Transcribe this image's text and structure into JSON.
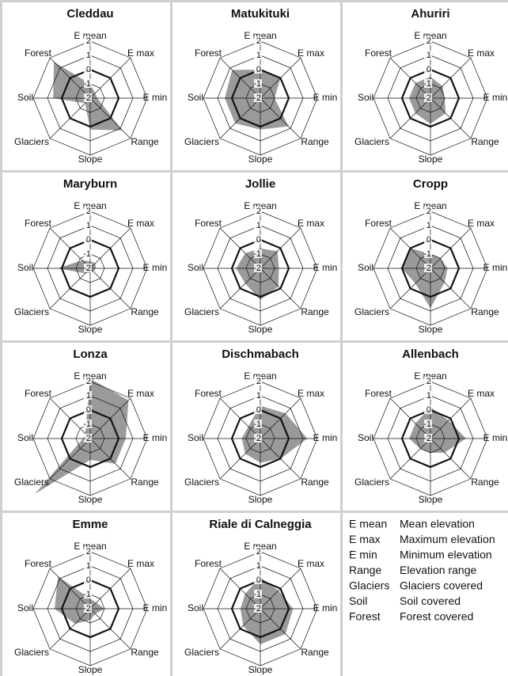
{
  "chart_data": [
    {
      "type": "radar",
      "title": "Cleddau",
      "axes": [
        "E mean",
        "E max",
        "E min",
        "Range",
        "Slope",
        "Glaciers",
        "Soil",
        "Forest"
      ],
      "values": [
        -1,
        -1.5,
        -1.5,
        1.2,
        0.2,
        -1.5,
        0.6,
        1.6
      ],
      "rlim": [
        -2,
        2
      ],
      "rticks": [
        2,
        1,
        0,
        -1,
        -2
      ],
      "bold_ring": 0,
      "color": "#9a9a9a"
    },
    {
      "type": "radar",
      "title": "Matukituki",
      "axes": [
        "E mean",
        "E max",
        "E min",
        "Range",
        "Slope",
        "Glaciers",
        "Soil",
        "Forest"
      ],
      "values": [
        0,
        0,
        -1,
        0.8,
        0.2,
        0.5,
        0.5,
        0.8
      ],
      "rlim": [
        -2,
        2
      ],
      "rticks": [
        2,
        1,
        0,
        -1,
        -2
      ],
      "bold_ring": 0,
      "color": "#9a9a9a"
    },
    {
      "type": "radar",
      "title": "Ahuriri",
      "axes": [
        "E mean",
        "E max",
        "E min",
        "Range",
        "Slope",
        "Glaciers",
        "Soil",
        "Forest"
      ],
      "values": [
        -0.5,
        -0.8,
        -1,
        -0.5,
        -0.2,
        -0.5,
        -0.5,
        -0.5
      ],
      "rlim": [
        -2,
        2
      ],
      "rticks": [
        2,
        1,
        0,
        -1,
        -2
      ],
      "bold_ring": 0,
      "color": "#9a9a9a"
    },
    {
      "type": "radar",
      "title": "Maryburn",
      "axes": [
        "E mean",
        "E max",
        "E min",
        "Range",
        "Slope",
        "Glaciers",
        "Soil",
        "Forest"
      ],
      "values": [
        -1.5,
        -1.5,
        -1.6,
        -1.7,
        -1.7,
        -1.5,
        0.3,
        -1.2
      ],
      "rlim": [
        -2,
        2
      ],
      "rticks": [
        2,
        1,
        0,
        -1,
        -2
      ],
      "bold_ring": 0,
      "color": "#9a9a9a"
    },
    {
      "type": "radar",
      "title": "Jollie",
      "axes": [
        "E mean",
        "E max",
        "E min",
        "Range",
        "Slope",
        "Glaciers",
        "Soil",
        "Forest"
      ],
      "values": [
        -0.6,
        -0.3,
        -0.7,
        -0.2,
        0.2,
        -0.5,
        -0.3,
        -0.5
      ],
      "rlim": [
        -2,
        2
      ],
      "rticks": [
        2,
        1,
        0,
        -1,
        -2
      ],
      "bold_ring": 0,
      "color": "#9a9a9a"
    },
    {
      "type": "radar",
      "title": "Cropp",
      "axes": [
        "E mean",
        "E max",
        "E min",
        "Range",
        "Slope",
        "Glaciers",
        "Soil",
        "Forest"
      ],
      "values": [
        -1,
        -1,
        -0.8,
        -0.6,
        0.8,
        -0.5,
        0,
        0
      ],
      "rlim": [
        -2,
        2
      ],
      "rticks": [
        2,
        1,
        0,
        -1,
        -2
      ],
      "bold_ring": 0,
      "color": "#9a9a9a"
    },
    {
      "type": "radar",
      "title": "Lonza",
      "axes": [
        "E mean",
        "E max",
        "E min",
        "Range",
        "Slope",
        "Glaciers",
        "Soil",
        "Forest"
      ],
      "values": [
        2.2,
        1.8,
        0.5,
        0.5,
        -0.5,
        3.5,
        -1.5,
        -1.5
      ],
      "rlim": [
        -2,
        2
      ],
      "rticks": [
        2,
        1,
        0,
        -1,
        -2
      ],
      "bold_ring": 0,
      "color": "#9a9a9a"
    },
    {
      "type": "radar",
      "title": "Dischmabach",
      "axes": [
        "E mean",
        "E max",
        "E min",
        "Range",
        "Slope",
        "Glaciers",
        "Soil",
        "Forest"
      ],
      "values": [
        0.3,
        0.5,
        1.3,
        0,
        -0.3,
        -0.5,
        -0.7,
        -0.8
      ],
      "rlim": [
        -2,
        2
      ],
      "rticks": [
        2,
        1,
        0,
        -1,
        -2
      ],
      "bold_ring": 0,
      "color": "#9a9a9a"
    },
    {
      "type": "radar",
      "title": "Allenbach",
      "axes": [
        "E mean",
        "E max",
        "E min",
        "Range",
        "Slope",
        "Glaciers",
        "Soil",
        "Forest"
      ],
      "values": [
        0.2,
        -0.2,
        0.5,
        -0.6,
        -1,
        -1,
        -0.5,
        -0.5
      ],
      "rlim": [
        -2,
        2
      ],
      "rticks": [
        2,
        1,
        0,
        -1,
        -2
      ],
      "bold_ring": 0,
      "color": "#9a9a9a"
    },
    {
      "type": "radar",
      "title": "Emme",
      "axes": [
        "E mean",
        "E max",
        "E min",
        "Range",
        "Slope",
        "Glaciers",
        "Soil",
        "Forest"
      ],
      "values": [
        -1.3,
        -1.4,
        -1,
        -1.5,
        -1.2,
        -0.5,
        0.5,
        1.2
      ],
      "rlim": [
        -2,
        2
      ],
      "rticks": [
        2,
        1,
        0,
        -1,
        -2
      ],
      "bold_ring": 0,
      "color": "#9a9a9a"
    },
    {
      "type": "radar",
      "title": "Riale di Calneggia",
      "axes": [
        "E mean",
        "E max",
        "E min",
        "Range",
        "Slope",
        "Glaciers",
        "Soil",
        "Forest"
      ],
      "values": [
        0.2,
        -0.2,
        0.3,
        0.5,
        0.5,
        -0.3,
        -0.6,
        -0.5
      ],
      "rlim": [
        -2,
        2
      ],
      "rticks": [
        2,
        1,
        0,
        -1,
        -2
      ],
      "bold_ring": 0,
      "color": "#9a9a9a"
    }
  ],
  "legend": [
    [
      "E mean",
      "Mean elevation"
    ],
    [
      "E max",
      "Maximum elevation"
    ],
    [
      "E min",
      "Minimum elevation"
    ],
    [
      "Range",
      "Elevation range"
    ],
    [
      "Glaciers",
      "Glaciers covered"
    ],
    [
      "Soil",
      "Soil covered"
    ],
    [
      "Forest",
      "Forest covered"
    ]
  ]
}
